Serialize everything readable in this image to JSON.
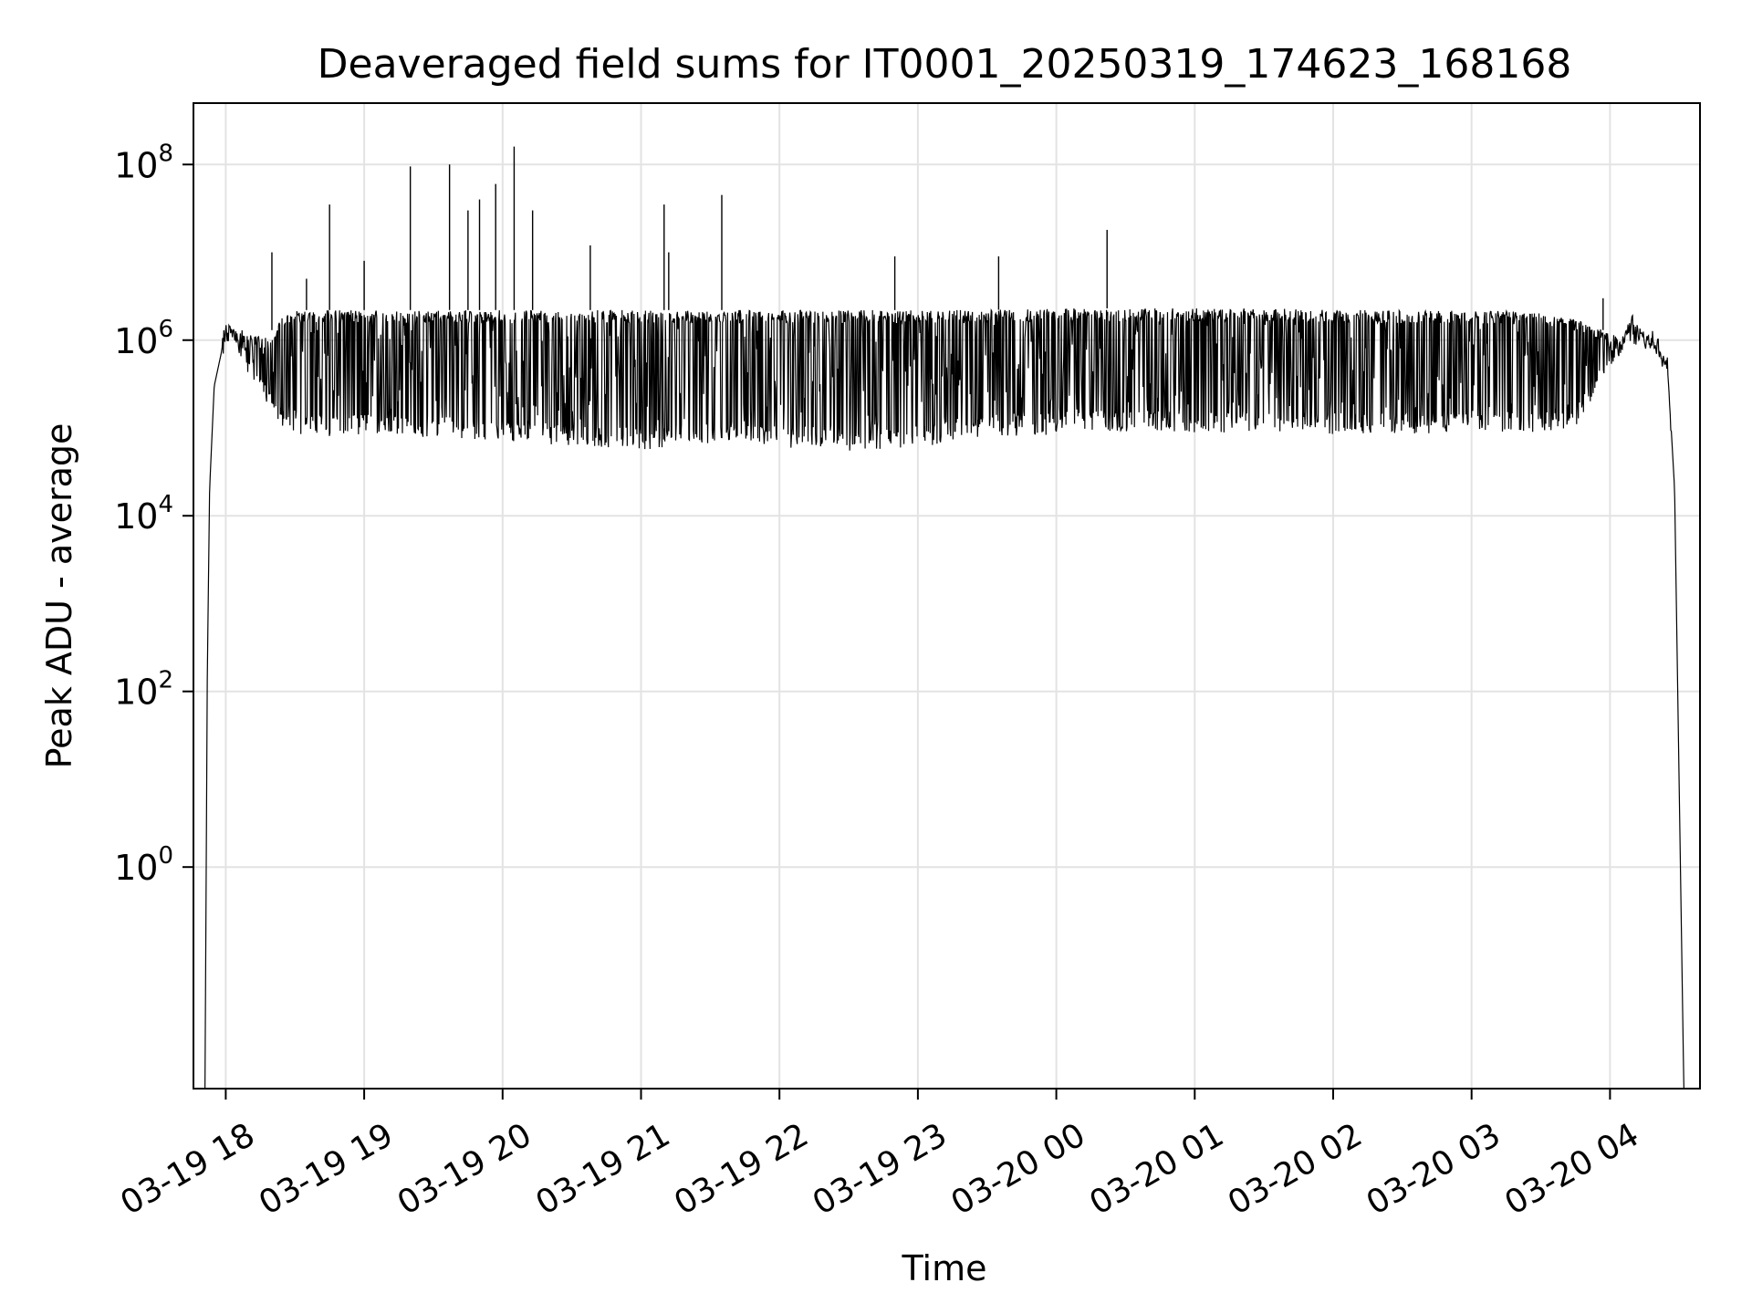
{
  "chart_data": {
    "type": "line",
    "title": "Deaveraged field sums for IT0001_20250319_174623_168168",
    "xlabel": "Time",
    "ylabel": "Peak ADU - average",
    "yscale": "log",
    "ylim": [
      0.003,
      500000000
    ],
    "xlim": [
      "2025-03-19 17:46",
      "2025-03-20 04:39"
    ],
    "grid": true,
    "line_color": "#000000",
    "x_ticks": [
      {
        "label": "03-19 18",
        "value": "2025-03-19 18:00"
      },
      {
        "label": "03-19 19",
        "value": "2025-03-19 19:00"
      },
      {
        "label": "03-19 20",
        "value": "2025-03-19 20:00"
      },
      {
        "label": "03-19 21",
        "value": "2025-03-19 21:00"
      },
      {
        "label": "03-19 22",
        "value": "2025-03-19 22:00"
      },
      {
        "label": "03-19 23",
        "value": "2025-03-19 23:00"
      },
      {
        "label": "03-20 00",
        "value": "2025-03-20 00:00"
      },
      {
        "label": "03-20 01",
        "value": "2025-03-20 01:00"
      },
      {
        "label": "03-20 02",
        "value": "2025-03-20 02:00"
      },
      {
        "label": "03-20 03",
        "value": "2025-03-20 03:00"
      },
      {
        "label": "03-20 04",
        "value": "2025-03-20 04:00"
      }
    ],
    "y_ticks": [
      {
        "base": "10",
        "exp": "0",
        "value": 1
      },
      {
        "base": "10",
        "exp": "2",
        "value": 100
      },
      {
        "base": "10",
        "exp": "4",
        "value": 10000
      },
      {
        "base": "10",
        "exp": "6",
        "value": 1000000
      },
      {
        "base": "10",
        "exp": "8",
        "value": 100000000
      }
    ],
    "series": [
      {
        "x": [
          "2025-03-19 17:51",
          "2025-03-19 17:52",
          "2025-03-19 17:53",
          "2025-03-19 17:55",
          "2025-03-19 17:58",
          "2025-03-19 18:00",
          "2025-03-19 18:05",
          "2025-03-19 18:10",
          "2025-03-19 18:15",
          "2025-03-19 18:20",
          "2025-03-19 18:25",
          "2025-03-19 18:30",
          "2025-03-19 18:35",
          "2025-03-19 18:45",
          "2025-03-19 19:00",
          "2025-03-19 19:20",
          "2025-03-19 19:40",
          "2025-03-19 20:00",
          "2025-03-19 20:20",
          "2025-03-19 20:40",
          "2025-03-19 21:00",
          "2025-03-19 21:20",
          "2025-03-19 21:40",
          "2025-03-19 22:00",
          "2025-03-19 22:30",
          "2025-03-19 23:00",
          "2025-03-19 23:30",
          "2025-03-20 00:00",
          "2025-03-20 00:30",
          "2025-03-20 01:00",
          "2025-03-20 01:30",
          "2025-03-20 02:00",
          "2025-03-20 02:30",
          "2025-03-20 03:00",
          "2025-03-20 03:30",
          "2025-03-20 03:45",
          "2025-03-20 04:00",
          "2025-03-20 04:05",
          "2025-03-20 04:10",
          "2025-03-20 04:15",
          "2025-03-20 04:20",
          "2025-03-20 04:25",
          "2025-03-20 04:28",
          "2025-03-20 04:32",
          "2025-03-20 04:34"
        ],
        "upper": [
          0.003,
          150,
          20000,
          300000,
          700000,
          1500000,
          1400000,
          1200000,
          1100000,
          1300000,
          2000000,
          2200000,
          2200000,
          2200000,
          2200000,
          2200000,
          2200000,
          2200000,
          2200000,
          2200000,
          2200000,
          2200000,
          2200000,
          2200000,
          2200000,
          2200000,
          2200000,
          2300000,
          2300000,
          2300000,
          2300000,
          2200000,
          2200000,
          2200000,
          2100000,
          1800000,
          1200000,
          1100000,
          2000000,
          1200000,
          1000000,
          500000,
          20000,
          0.003,
          0.003
        ],
        "lower": [
          0.003,
          150,
          20000,
          300000,
          700000,
          1000000,
          700000,
          400000,
          250000,
          150000,
          100000,
          90000,
          80000,
          80000,
          85000,
          80000,
          75000,
          70000,
          65000,
          60000,
          55000,
          65000,
          70000,
          60000,
          55000,
          60000,
          75000,
          85000,
          90000,
          85000,
          90000,
          85000,
          85000,
          90000,
          90000,
          100000,
          500000,
          700000,
          900000,
          800000,
          700000,
          400000,
          20000,
          0.003,
          0.003
        ],
        "spikes": [
          {
            "x": "2025-03-19 18:20",
            "y": 10000000
          },
          {
            "x": "2025-03-19 18:35",
            "y": 5000000
          },
          {
            "x": "2025-03-19 18:45",
            "y": 35000000
          },
          {
            "x": "2025-03-19 19:00",
            "y": 8000000
          },
          {
            "x": "2025-03-19 19:20",
            "y": 95000000
          },
          {
            "x": "2025-03-19 19:37",
            "y": 100000000
          },
          {
            "x": "2025-03-19 19:45",
            "y": 30000000
          },
          {
            "x": "2025-03-19 19:50",
            "y": 40000000
          },
          {
            "x": "2025-03-19 19:57",
            "y": 60000000
          },
          {
            "x": "2025-03-19 20:05",
            "y": 160000000
          },
          {
            "x": "2025-03-19 20:13",
            "y": 30000000
          },
          {
            "x": "2025-03-19 20:38",
            "y": 12000000
          },
          {
            "x": "2025-03-19 21:10",
            "y": 35000000
          },
          {
            "x": "2025-03-19 21:12",
            "y": 10000000
          },
          {
            "x": "2025-03-19 21:35",
            "y": 45000000
          },
          {
            "x": "2025-03-19 22:50",
            "y": 9000000
          },
          {
            "x": "2025-03-19 23:35",
            "y": 9000000
          },
          {
            "x": "2025-03-20 00:22",
            "y": 18000000
          },
          {
            "x": "2025-03-20 03:57",
            "y": 3000000
          }
        ]
      }
    ]
  }
}
